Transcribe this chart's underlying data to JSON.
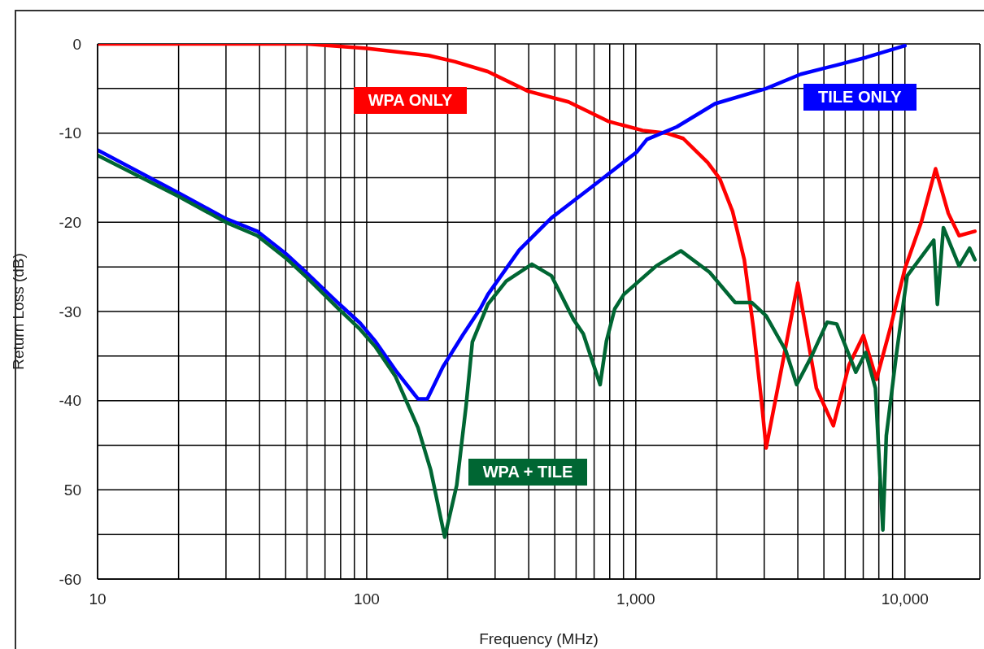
{
  "chart_data": {
    "type": "line",
    "xlabel": "Frequency (MHz)",
    "ylabel": "Return Loss (dB)",
    "log": "x",
    "xlim": [
      10,
      19000
    ],
    "ylim": [
      -60,
      0
    ],
    "xticks": [
      10,
      {
        "value": 20,
        "label": null
      },
      {
        "value": 30,
        "label": null
      },
      {
        "value": 40,
        "label": null
      },
      {
        "value": 50,
        "label": null
      },
      {
        "value": 60,
        "label": null
      },
      {
        "value": 70,
        "label": null
      },
      {
        "value": 80,
        "label": null
      },
      {
        "value": 90,
        "label": null
      },
      100,
      {
        "value": 200,
        "label": null
      },
      {
        "value": 300,
        "label": null
      },
      {
        "value": 400,
        "label": null
      },
      {
        "value": 500,
        "label": null
      },
      {
        "value": 600,
        "label": null
      },
      {
        "value": 700,
        "label": null
      },
      {
        "value": 800,
        "label": null
      },
      {
        "value": 900,
        "label": null
      },
      {
        "value": 1000,
        "label": "1,000"
      },
      {
        "value": 2000,
        "label": null
      },
      {
        "value": 3000,
        "label": null
      },
      {
        "value": 4000,
        "label": null
      },
      {
        "value": 5000,
        "label": null
      },
      {
        "value": 6000,
        "label": null
      },
      {
        "value": 7000,
        "label": null
      },
      {
        "value": 8000,
        "label": null
      },
      {
        "value": 9000,
        "label": null
      },
      {
        "value": 10000,
        "label": "10,000"
      }
    ],
    "yticks": [
      0,
      {
        "value": -5,
        "label": null
      },
      -10,
      {
        "value": -15,
        "label": null
      },
      -20,
      {
        "value": -25,
        "label": null
      },
      -30,
      {
        "value": -35,
        "label": null
      },
      -40,
      {
        "value": -45,
        "label": null
      },
      {
        "value": -50,
        "label": "50"
      },
      {
        "value": -55,
        "label": null
      },
      -60
    ],
    "grid": true,
    "legend": false,
    "marker": "none",
    "line_style": "solid",
    "series": [
      {
        "name": "WPA ONLY",
        "color": "#ff0000",
        "x": [
          10,
          30,
          60,
          100,
          170,
          213,
          282,
          398,
          562,
          794,
          1060,
          1300,
          1500,
          1850,
          2050,
          2290,
          2530,
          2740,
          2930,
          3050,
          3500,
          4000,
          4690,
          5420,
          6200,
          7010,
          7840,
          8800,
          10000,
          11500,
          13000,
          14500,
          15900,
          18200
        ],
        "values": [
          0,
          0,
          0,
          -0.5,
          -1.3,
          -2,
          -3.1,
          -5.3,
          -6.5,
          -8.7,
          -9.7,
          -10,
          -10.6,
          -13.3,
          -15.1,
          -18.8,
          -24.2,
          -32,
          -40,
          -45.3,
          -36,
          -26.8,
          -38.6,
          -42.8,
          -36,
          -32.7,
          -37.6,
          -32,
          -25.2,
          -20,
          -14,
          -19,
          -21.5,
          -21
        ]
      },
      {
        "name": "TILE ONLY",
        "color": "#0000ff",
        "x": [
          10,
          20,
          30,
          39.2,
          50,
          60,
          78,
          94.5,
          108,
          128,
          155,
          168,
          192,
          228,
          264,
          282,
          369,
          486,
          688,
          1010,
          1100,
          1420,
          1970,
          3050,
          4100,
          5530,
          7200,
          10000
        ],
        "values": [
          -11.9,
          -16.7,
          -19.6,
          -21,
          -23.5,
          -25.7,
          -29,
          -31.3,
          -33.4,
          -36.6,
          -39.8,
          -39.8,
          -36.2,
          -32.6,
          -29.7,
          -28.1,
          -23.1,
          -19.5,
          -16,
          -12.1,
          -10.7,
          -9.3,
          -6.7,
          -5,
          -3.4,
          -2.4,
          -1.5,
          -0.2
        ]
      },
      {
        "name": "WPA + TILE",
        "color": "#006633",
        "x": [
          10,
          20,
          30,
          39.2,
          50,
          60,
          78,
          94.5,
          108,
          128,
          155,
          173,
          195,
          216,
          234,
          247,
          282,
          330,
          411,
          486,
          587,
          638,
          737,
          778,
          835,
          902,
          1190,
          1470,
          1880,
          2340,
          2700,
          3050,
          3610,
          3960,
          4500,
          5140,
          5580,
          6570,
          7150,
          7770,
          8280,
          8530,
          9280,
          9800,
          10200,
          12800,
          13200,
          13900,
          15900,
          17400,
          18200
        ],
        "values": [
          -12.5,
          -17.1,
          -20,
          -21.5,
          -24,
          -26.2,
          -29.6,
          -32,
          -34,
          -37.3,
          -43,
          -47.8,
          -55.3,
          -49.5,
          -40.6,
          -33.4,
          -29.2,
          -26.6,
          -24.7,
          -26,
          -30.9,
          -32.5,
          -38.2,
          -33.3,
          -29.7,
          -28.1,
          -24.9,
          -23.2,
          -25.6,
          -29,
          -29,
          -30.5,
          -34.4,
          -38.2,
          -35,
          -31.2,
          -31.4,
          -36.8,
          -34.6,
          -38.6,
          -54.5,
          -43.9,
          -35,
          -29.7,
          -26,
          -22,
          -29.2,
          -20.6,
          -24.9,
          -22.9,
          -24.2
        ]
      }
    ]
  }
}
